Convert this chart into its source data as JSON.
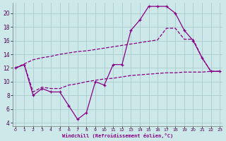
{
  "xlabel": "Windchill (Refroidissement éolien,°C)",
  "bg_color": "#cce8e8",
  "grid_color": "#aacccc",
  "line_color": "#880088",
  "xlim_min": -0.3,
  "xlim_max": 23.3,
  "ylim_min": 3.5,
  "ylim_max": 21.5,
  "xticks": [
    0,
    1,
    2,
    3,
    4,
    5,
    6,
    7,
    8,
    9,
    10,
    11,
    12,
    13,
    14,
    15,
    16,
    17,
    18,
    19,
    20,
    21,
    22,
    23
  ],
  "yticks": [
    4,
    6,
    8,
    10,
    12,
    14,
    16,
    18,
    20
  ],
  "curve1_x": [
    0,
    1,
    2,
    3,
    4,
    5,
    6,
    7,
    8,
    9,
    10,
    11,
    12,
    13,
    14,
    15,
    16,
    17,
    18,
    19,
    20,
    21,
    22,
    23
  ],
  "curve1_y": [
    12.0,
    12.5,
    8.0,
    9.0,
    8.5,
    8.5,
    6.5,
    4.5,
    5.5,
    10.0,
    9.5,
    12.5,
    12.5,
    17.5,
    19.0,
    21.0,
    21.0,
    21.0,
    20.0,
    17.5,
    16.0,
    13.5,
    11.5,
    11.5
  ],
  "curve2_x": [
    0,
    1,
    2,
    3,
    4,
    5,
    6,
    7,
    8,
    9,
    10,
    11,
    12,
    13,
    14,
    15,
    16,
    17,
    18,
    19,
    20,
    21,
    22,
    23
  ],
  "curve2_y": [
    12.0,
    12.5,
    8.5,
    9.2,
    9.0,
    9.0,
    9.5,
    9.7,
    10.0,
    10.2,
    10.4,
    10.5,
    10.7,
    10.9,
    11.0,
    11.1,
    11.2,
    11.3,
    11.3,
    11.4,
    11.4,
    11.4,
    11.5,
    11.5
  ],
  "curve3_x": [
    0,
    2,
    3,
    4,
    5,
    6,
    7,
    8,
    9,
    10,
    11,
    12,
    13,
    14,
    15,
    16,
    17,
    18,
    19,
    20,
    21,
    22,
    23
  ],
  "curve3_y": [
    12.0,
    13.2,
    13.5,
    13.7,
    14.0,
    14.2,
    14.4,
    14.5,
    14.7,
    14.9,
    15.1,
    15.3,
    15.5,
    15.7,
    15.9,
    16.1,
    17.8,
    17.8,
    16.2,
    16.2,
    13.5,
    11.5,
    11.5
  ]
}
